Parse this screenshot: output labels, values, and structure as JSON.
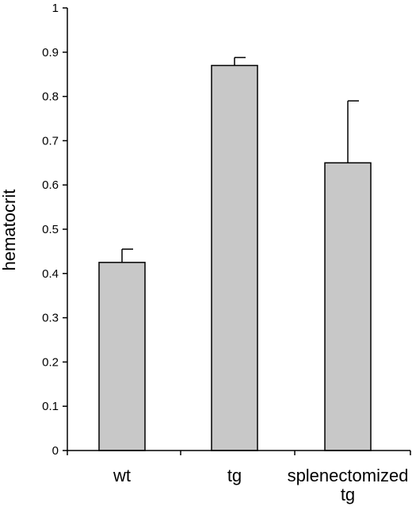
{
  "chart_data": {
    "type": "bar",
    "categories": [
      [
        "wt"
      ],
      [
        "tg"
      ],
      [
        "splenectomized",
        "tg"
      ]
    ],
    "values": [
      0.425,
      0.87,
      0.65
    ],
    "errors": [
      0.03,
      0.018,
      0.14
    ],
    "ylabel": "hematocrit",
    "xlabel": "",
    "ylim": [
      0,
      1
    ],
    "yticks": [
      "0",
      "0.1",
      "0.2",
      "0.3",
      "0.4",
      "0.5",
      "0.6",
      "0.7",
      "0.8",
      "0.9",
      "1"
    ],
    "grid": false,
    "bar_color": "#c8c8c8",
    "edge_color": "#000000"
  }
}
